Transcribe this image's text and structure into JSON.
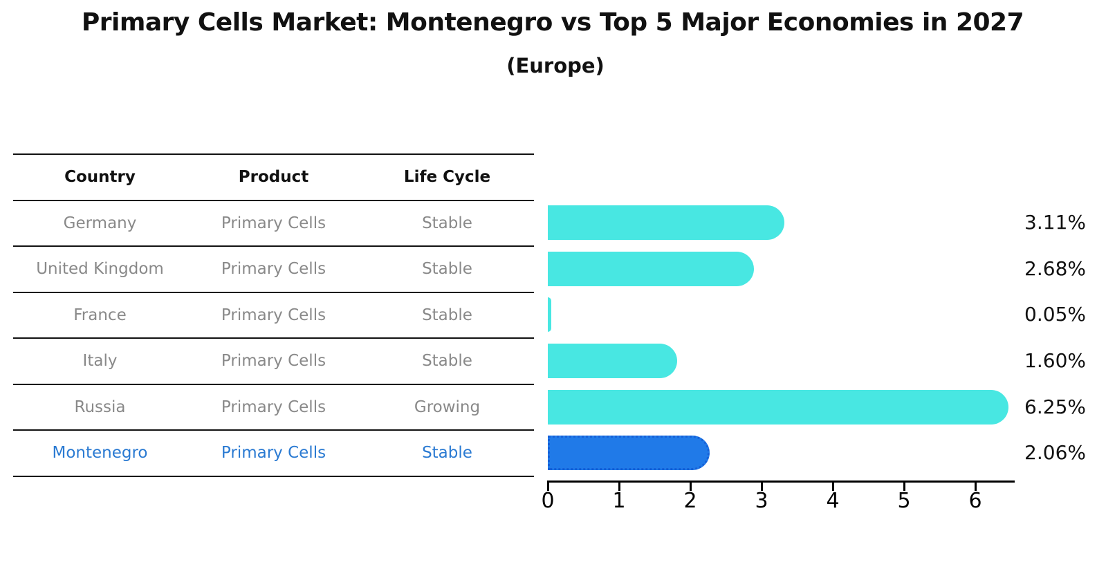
{
  "title": "Primary Cells Market: Montenegro vs Top 5 Major Economies in 2027",
  "subtitle": "(Europe)",
  "table": {
    "headers": [
      "Country",
      "Product",
      "Life Cycle"
    ],
    "rows": [
      {
        "country": "Germany",
        "product": "Primary Cells",
        "life_cycle": "Stable",
        "highlight": false
      },
      {
        "country": "United Kingdom",
        "product": "Primary Cells",
        "life_cycle": "Stable",
        "highlight": false
      },
      {
        "country": "France",
        "product": "Primary Cells",
        "life_cycle": "Stable",
        "highlight": false
      },
      {
        "country": "Italy",
        "product": "Primary Cells",
        "life_cycle": "Stable",
        "highlight": false
      },
      {
        "country": "Russia",
        "product": "Primary Cells",
        "life_cycle": "Growing",
        "highlight": false
      },
      {
        "country": "Montenegro",
        "product": "Primary Cells",
        "life_cycle": "Stable",
        "highlight": true
      }
    ]
  },
  "chart_data": {
    "type": "bar",
    "orientation": "horizontal",
    "title": "Primary Cells Market: Montenegro vs Top 5 Major Economies in 2027 (Europe)",
    "categories": [
      "Germany",
      "United Kingdom",
      "France",
      "Italy",
      "Russia",
      "Montenegro"
    ],
    "values": [
      3.11,
      2.68,
      0.05,
      1.6,
      6.25,
      2.06
    ],
    "value_labels": [
      "3.11%",
      "2.68%",
      "0.05%",
      "1.60%",
      "6.25%",
      "2.06%"
    ],
    "unit": "%",
    "xlabel": "",
    "ylabel": "",
    "xlim": [
      0,
      6.55
    ],
    "xticks": [
      0,
      1,
      2,
      3,
      4,
      5,
      6
    ],
    "grid": false,
    "legend": null,
    "highlight_index": 5,
    "bar_color_default": "#48E7E2",
    "bar_color_highlight": "#207AE8",
    "highlight_border_color": "#1560D8"
  },
  "colors": {
    "text_primary": "#111111",
    "text_muted": "#898989",
    "text_highlight": "#2A7AD2",
    "axis": "#000000",
    "background": "#FFFFFF"
  }
}
